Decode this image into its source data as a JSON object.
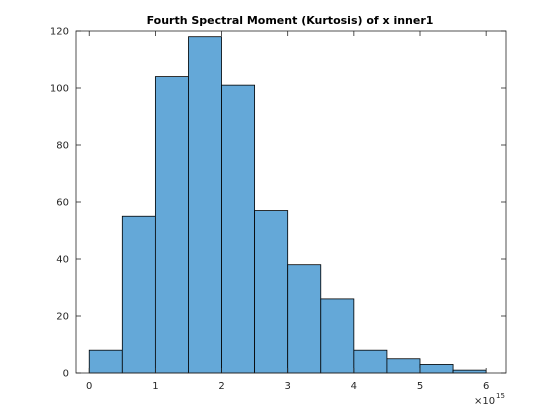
{
  "chart_data": {
    "type": "bar",
    "title": "Fourth Spectral Moment (Kurtosis) of x inner1",
    "xlabel": "",
    "ylabel": "",
    "bin_edges": [
      0,
      0.5,
      1,
      1.5,
      2,
      2.5,
      3,
      3.5,
      4,
      4.5,
      5,
      5.5,
      6
    ],
    "values": [
      8,
      55,
      104,
      118,
      101,
      57,
      38,
      26,
      8,
      5,
      3,
      1
    ],
    "xlim": [
      -0.2,
      6.3
    ],
    "ylim": [
      0,
      120
    ],
    "x_ticks": [
      0,
      1,
      2,
      3,
      4,
      5,
      6
    ],
    "y_ticks": [
      0,
      20,
      40,
      60,
      80,
      100,
      120
    ],
    "x_exponent": "10",
    "x_exponent_power": "15",
    "x_exponent_prefix": "×",
    "bar_color": "#64a8d8",
    "edge_color": "#000000",
    "grid": false
  }
}
